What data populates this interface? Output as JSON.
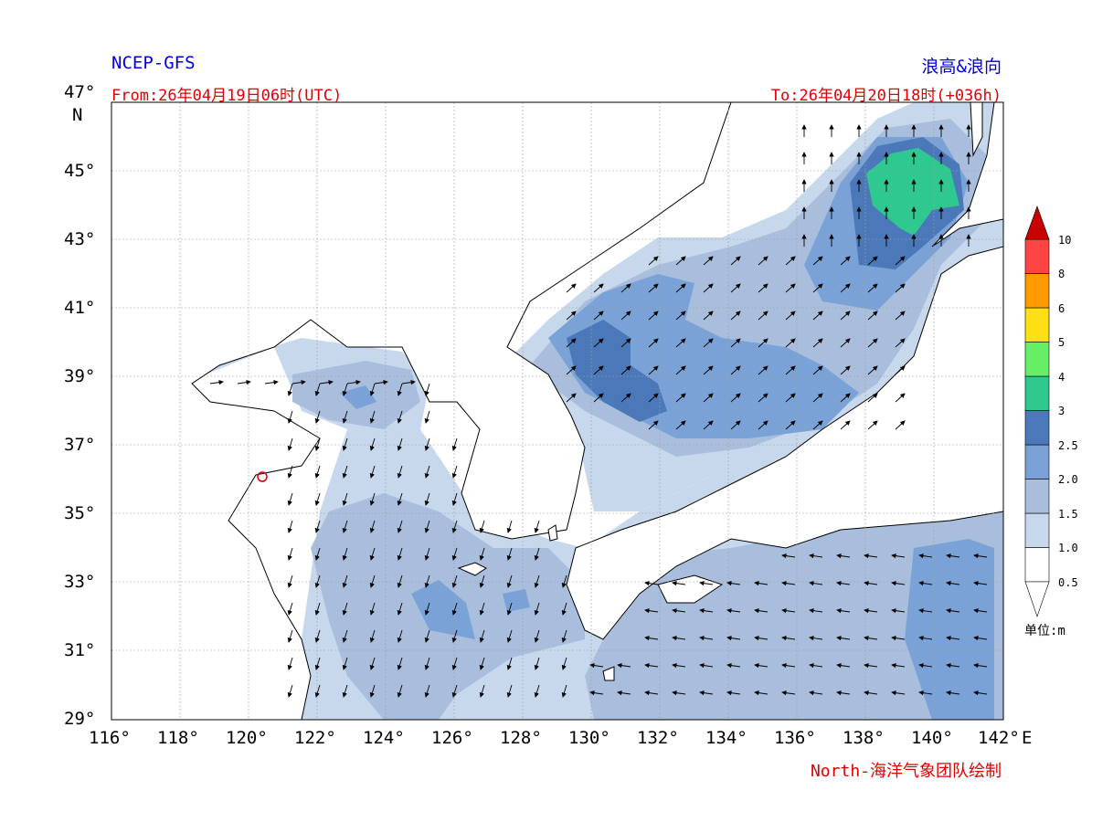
{
  "header": {
    "model": "NCEP-GFS",
    "product": "浪高&浪向",
    "from": "From:26年04月19日06时(UTC)",
    "to": "To:26年04月20日18时(+036h)"
  },
  "footer": {
    "credit": "North-海洋气象团队绘制"
  },
  "axes": {
    "lat_labels": [
      "47°",
      "45°",
      "43°",
      "41°",
      "39°",
      "37°",
      "35°",
      "33°",
      "31°",
      "29°"
    ],
    "lat_unit": "N",
    "lon_labels": [
      "116°",
      "118°",
      "120°",
      "122°",
      "124°",
      "126°",
      "128°",
      "130°",
      "132°",
      "134°",
      "136°",
      "138°",
      "140°",
      "142°"
    ],
    "lon_unit": "E",
    "lat_range": [
      29,
      47
    ],
    "lon_range": [
      116,
      142
    ]
  },
  "colorbar": {
    "unit": "单位:m",
    "levels": [
      "0.5",
      "1.0",
      "1.5",
      "2.0",
      "2.5",
      "3",
      "4",
      "5",
      "6",
      "8",
      "10"
    ],
    "colors": [
      "#ffffff",
      "#c8d8ec",
      "#a8bedc",
      "#7aa2d6",
      "#4a78b8",
      "#2fc98f",
      "#66ee66",
      "#ffe014",
      "#ff9a00",
      "#ff4444",
      "#c80000"
    ]
  },
  "legend_colors": {
    "land": "#ffffff",
    "coast": "#000000",
    "grid": "#a0a0a0"
  }
}
